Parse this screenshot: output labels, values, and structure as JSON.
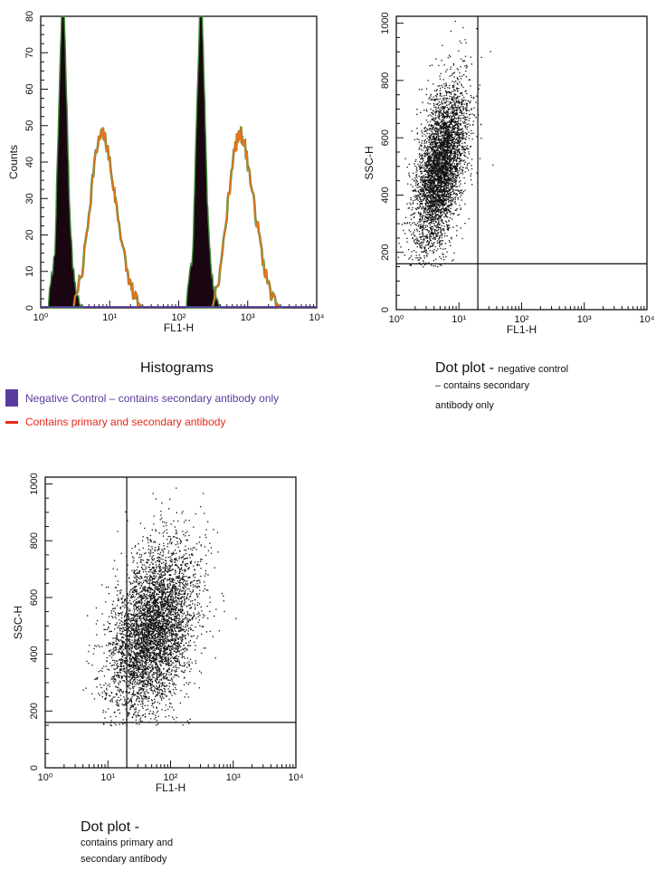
{
  "colors": {
    "negative": "#5b3a9e",
    "primary": "#e8271b",
    "orange": "#e8731a",
    "green": "#3f8a3a",
    "fill": "#1a0610"
  },
  "histogram": {
    "caption": "Histograms",
    "legend": [
      {
        "label": "Negative Control – contains secondary antibody only",
        "color": "#5b3a9e",
        "swatch": "box"
      },
      {
        "label": "Contains primary and secondary antibody",
        "color": "#e8271b",
        "swatch": "line"
      }
    ]
  },
  "dot1": {
    "caption_main": "Dot plot - ",
    "caption_small": "negative control",
    "caption_lines": [
      "– contains secondary",
      "antibody only"
    ]
  },
  "dot2": {
    "caption_main": "Dot plot -",
    "caption_lines": [
      "contains primary and",
      "secondary antibody"
    ]
  },
  "chart_data": [
    {
      "type": "area",
      "title": "",
      "xlabel": "FL1-H",
      "ylabel": "Counts",
      "xscale": "log",
      "xlim": [
        1,
        10000
      ],
      "ylim": [
        0,
        80
      ],
      "x_ticks": [
        "10⁰",
        "10¹",
        "10²",
        "10³",
        "10⁴"
      ],
      "y_ticks": [
        0,
        10,
        20,
        30,
        40,
        50,
        60,
        70,
        80
      ],
      "series": [
        {
          "name": "Negative Control – contains secondary antibody only",
          "x": [
            1.3,
            1.6,
            1.8,
            2.0,
            2.2,
            2.4,
            2.6,
            2.9,
            3.3,
            4.0
          ],
          "y": [
            2,
            15,
            50,
            80,
            80,
            55,
            30,
            12,
            4,
            0
          ]
        },
        {
          "name": "Contains primary and secondary antibody",
          "x": [
            3,
            4,
            5,
            6,
            7,
            8,
            9,
            10,
            12,
            14,
            17,
            20,
            24,
            30
          ],
          "y": [
            0,
            10,
            26,
            40,
            46,
            48,
            45,
            40,
            30,
            22,
            12,
            6,
            2,
            0
          ]
        },
        {
          "name": "Negative Control – contains secondary antibody only",
          "x": [
            130,
            160,
            180,
            200,
            220,
            240,
            260,
            290,
            330,
            400
          ],
          "y": [
            2,
            15,
            50,
            80,
            80,
            55,
            30,
            12,
            4,
            0
          ]
        },
        {
          "name": "Contains primary and secondary antibody",
          "x": [
            300,
            400,
            500,
            600,
            700,
            800,
            900,
            1000,
            1200,
            1400,
            1700,
            2000,
            2400,
            3000
          ],
          "y": [
            0,
            10,
            26,
            40,
            46,
            48,
            45,
            40,
            30,
            22,
            12,
            6,
            2,
            0
          ]
        }
      ]
    },
    {
      "type": "scatter",
      "title": "",
      "xlabel": "FL1-H",
      "ylabel": "SSC-H",
      "xscale": "log",
      "xlim": [
        1,
        10000
      ],
      "ylim": [
        0,
        1024
      ],
      "x_ticks": [
        "10⁰",
        "10¹",
        "10²",
        "10³",
        "10⁴"
      ],
      "y_ticks": [
        0,
        200,
        400,
        600,
        800,
        1000
      ],
      "quadrant": {
        "x": 20,
        "y": 160
      },
      "cluster": {
        "center_x": 5,
        "center_y": 500,
        "spread_log_x": 0.18,
        "spread_y": 140,
        "slope_log_x_per_100": 0.07,
        "points": 4200
      }
    },
    {
      "type": "scatter",
      "title": "",
      "xlabel": "FL1-H",
      "ylabel": "SSC-H",
      "xscale": "log",
      "xlim": [
        1,
        10000
      ],
      "ylim": [
        0,
        1024
      ],
      "x_ticks": [
        "10⁰",
        "10¹",
        "10²",
        "10³",
        "10⁴"
      ],
      "y_ticks": [
        0,
        200,
        400,
        600,
        800,
        1000
      ],
      "quadrant": {
        "x": 20,
        "y": 160
      },
      "cluster": {
        "center_x": 50,
        "center_y": 480,
        "spread_log_x": 0.32,
        "spread_y": 150,
        "slope_log_x_per_100": 0.08,
        "points": 4800
      }
    }
  ]
}
